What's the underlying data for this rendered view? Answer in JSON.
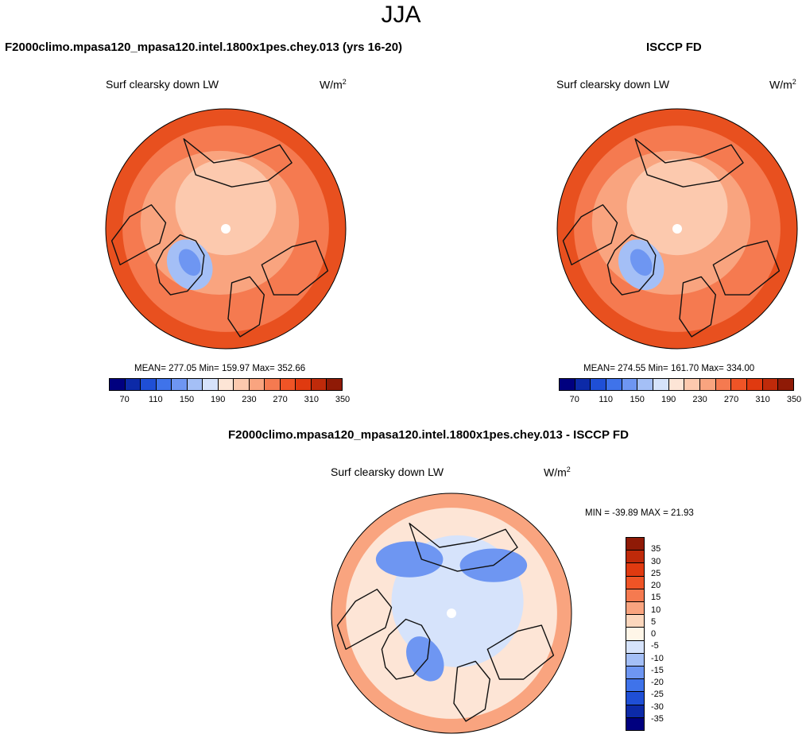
{
  "season": "JJA",
  "panels": {
    "model": {
      "title": "F2000climo.mpasa120_mpasa120.intel.1800x1pes.chey.013 (yrs 16-20)",
      "variable": "Surf clearsky down LW",
      "units_base": "W/m",
      "units_exp": "2",
      "stats": "MEAN= 277.05  Min= 159.97  Max= 352.66"
    },
    "obs": {
      "title": "ISCCP FD",
      "variable": "Surf clearsky down LW",
      "units_base": "W/m",
      "units_exp": "2",
      "stats": "MEAN= 274.55  Min= 161.70  Max= 334.00"
    },
    "diff": {
      "title": "F2000climo.mpasa120_mpasa120.intel.1800x1pes.chey.013 - ISCCP FD",
      "variable": "Surf clearsky down LW",
      "units_base": "W/m",
      "units_exp": "2",
      "stats": "MIN = -39.89 MAX =  21.93"
    }
  },
  "colorbar_main": {
    "colors": [
      "#00007f",
      "#0c2aa8",
      "#1f4fd6",
      "#3f73ea",
      "#6e96f2",
      "#a4bff6",
      "#d6e3fb",
      "#fde5d6",
      "#fcc9ae",
      "#f9a47f",
      "#f57a50",
      "#ef5426",
      "#e03a10",
      "#bf2a0a",
      "#8f1a06"
    ],
    "labels": [
      "70",
      "110",
      "150",
      "190",
      "230",
      "270",
      "310",
      "350"
    ]
  },
  "colorbar_diff": {
    "colors": [
      "#00007f",
      "#0c2aa8",
      "#1f4fd6",
      "#3f73ea",
      "#6e96f2",
      "#a4bff6",
      "#d6e3fb",
      "#fff6e8",
      "#fcd7bd",
      "#f9a47f",
      "#f57a50",
      "#ef5426",
      "#e03a10",
      "#bf2a0a",
      "#8f1a06"
    ],
    "labels": [
      "-35",
      "-30",
      "-25",
      "-20",
      "-15",
      "-10",
      "-5",
      "0",
      "5",
      "10",
      "15",
      "20",
      "25",
      "30",
      "35"
    ]
  },
  "map_colors": {
    "ocean_low": "#f9a47f",
    "ocean_mid": "#f57a50",
    "ocean_high": "#e8501f",
    "polar": "#fcc9ae",
    "cold": "#a4bff6",
    "coldest": "#6e96f2",
    "diff_pos": "#f9a47f",
    "diff_neutral": "#fde5d6",
    "diff_neg": "#d6e3fb",
    "diff_neg2": "#6e96f2",
    "coast": "#111111"
  }
}
